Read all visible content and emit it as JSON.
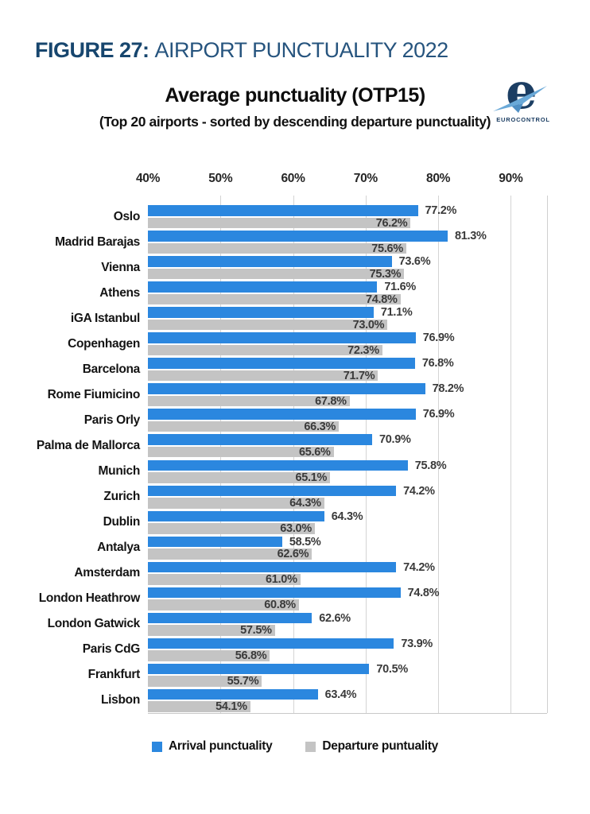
{
  "figure_header": {
    "prefix": "FIGURE 27:",
    "title": "AIRPORT PUNCTUALITY 2022"
  },
  "chart_header": {
    "title": "Average punctuality (OTP15)",
    "subtitle": "(Top 20 airports - sorted by  descending departure punctuality)"
  },
  "logo": {
    "name": "eurocontrol-logo",
    "text": "EUROCONTROL"
  },
  "colors": {
    "arrival_blue": "#2b87df",
    "departure_gray": "#c4c4c4",
    "header_navy": "#17466e",
    "gridline": "#d4d4d4"
  },
  "legend": {
    "items": [
      {
        "label": "Arrival punctuality",
        "color": "#2b87df"
      },
      {
        "label": "Departure puntuality",
        "color": "#c4c4c4"
      }
    ]
  },
  "chart_data": {
    "type": "bar",
    "orientation": "horizontal",
    "title": "Average punctuality (OTP15)",
    "subtitle": "(Top 20 airports - sorted by  descending departure punctuality)",
    "xlim": [
      40,
      95
    ],
    "tick_step": 10,
    "tick_labels": [
      "40%",
      "50%",
      "60%",
      "70%",
      "80%",
      "90%"
    ],
    "ticks": [
      40,
      50,
      60,
      70,
      80,
      90
    ],
    "grid": true,
    "legend_position": "bottom",
    "value_label_format": "one-decimal-percent",
    "categories": [
      "Oslo",
      "Madrid Barajas",
      "Vienna",
      "Athens",
      "iGA Istanbul",
      "Copenhagen",
      "Barcelona",
      "Rome Fiumicino",
      "Paris Orly",
      "Palma de Mallorca",
      "Munich",
      "Zurich",
      "Dublin",
      "Antalya",
      "Amsterdam",
      "London Heathrow",
      "London Gatwick",
      "Paris CdG",
      "Frankfurt",
      "Lisbon"
    ],
    "series": [
      {
        "name": "Arrival punctuality",
        "color": "#2b87df",
        "values": [
          77.2,
          81.3,
          73.6,
          71.6,
          71.1,
          76.9,
          76.8,
          78.2,
          76.9,
          70.9,
          75.8,
          74.2,
          64.3,
          58.5,
          74.2,
          74.8,
          62.6,
          73.9,
          70.5,
          63.4
        ]
      },
      {
        "name": "Departure puntuality",
        "color": "#c4c4c4",
        "values": [
          76.2,
          75.6,
          75.3,
          74.8,
          73.0,
          72.3,
          71.7,
          67.8,
          66.3,
          65.6,
          65.1,
          64.3,
          63.0,
          62.6,
          61.0,
          60.8,
          57.5,
          56.8,
          55.7,
          54.1
        ]
      }
    ]
  }
}
